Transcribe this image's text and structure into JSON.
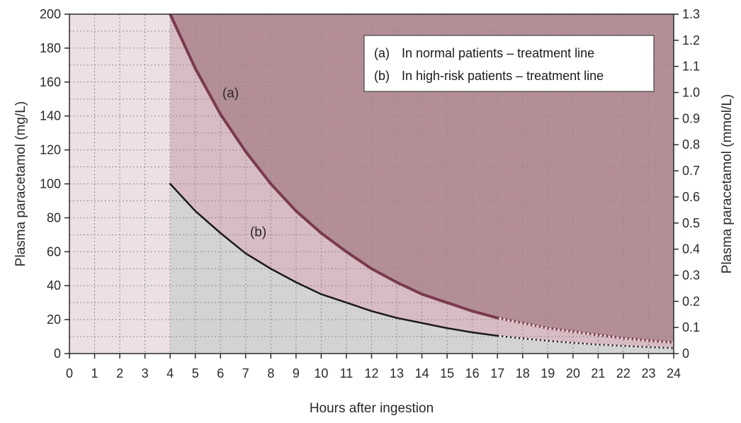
{
  "chart_data": {
    "type": "line",
    "xlabel": "Hours after ingestion",
    "ylabel_left": "Plasma paracetamol (mg/L)",
    "ylabel_right": "Plasma paracetamol (mmol/L)",
    "xlim": [
      0,
      24
    ],
    "ylim_left": [
      0,
      200
    ],
    "ylim_right": [
      0,
      1.3
    ],
    "x_ticks": [
      "0",
      "1",
      "2",
      "3",
      "4",
      "5",
      "6",
      "7",
      "8",
      "9",
      "10",
      "11",
      "12",
      "13",
      "14",
      "15",
      "16",
      "17",
      "18",
      "19",
      "20",
      "21",
      "22",
      "23",
      "24"
    ],
    "y_ticks_left": [
      "0",
      "20",
      "40",
      "60",
      "80",
      "100",
      "120",
      "140",
      "160",
      "180",
      "200"
    ],
    "y_ticks_right": [
      "0",
      "0.1",
      "0.2",
      "0.3",
      "0.4",
      "0.5",
      "0.6",
      "0.7",
      "0.8",
      "0.9",
      "1.0",
      "1.1",
      "1.2",
      "1.3"
    ],
    "grid": true,
    "legend_position": "top-right",
    "legend": [
      {
        "key": "(a)",
        "text": "In normal patients – treatment line"
      },
      {
        "key": "(b)",
        "text": "In high-risk patients – treatment line"
      }
    ],
    "series": [
      {
        "name": "(a)",
        "label": "(a)",
        "label_at": [
          6.4,
          151
        ],
        "x": [
          4,
          5,
          6,
          7,
          8,
          9,
          10,
          11,
          12,
          13,
          14,
          15,
          16,
          17,
          18,
          19,
          20,
          21,
          22,
          23,
          24
        ],
        "values": [
          200,
          168,
          141,
          119,
          100,
          84,
          71,
          60,
          50,
          42,
          35,
          30,
          25,
          21,
          18,
          15,
          13,
          11,
          9.1,
          7.7,
          6.5
        ],
        "solid_until": 17
      },
      {
        "name": "(b)",
        "label": "(b)",
        "label_at": [
          7.5,
          69
        ],
        "x": [
          4,
          5,
          6,
          7,
          8,
          9,
          10,
          11,
          12,
          13,
          14,
          15,
          16,
          17,
          18,
          19,
          20,
          21,
          22,
          23,
          24
        ],
        "values": [
          100,
          84,
          71,
          59,
          50,
          42,
          35,
          30,
          25,
          21,
          18,
          15,
          12.5,
          10.5,
          8.9,
          7.5,
          6.3,
          5.3,
          4.5,
          3.8,
          3.2
        ],
        "solid_until": 17
      }
    ],
    "regions": {
      "pre_4h": "#ece0e4",
      "above_a": "#b48e97",
      "between_a_b": "#d8bcc3",
      "below_b": "#d3d3d5"
    },
    "colors": {
      "line_a": "#7a3a4e",
      "line_b": "#1a1a1a",
      "grid": "#8e8a8c",
      "axis": "#2a2a2a"
    }
  }
}
